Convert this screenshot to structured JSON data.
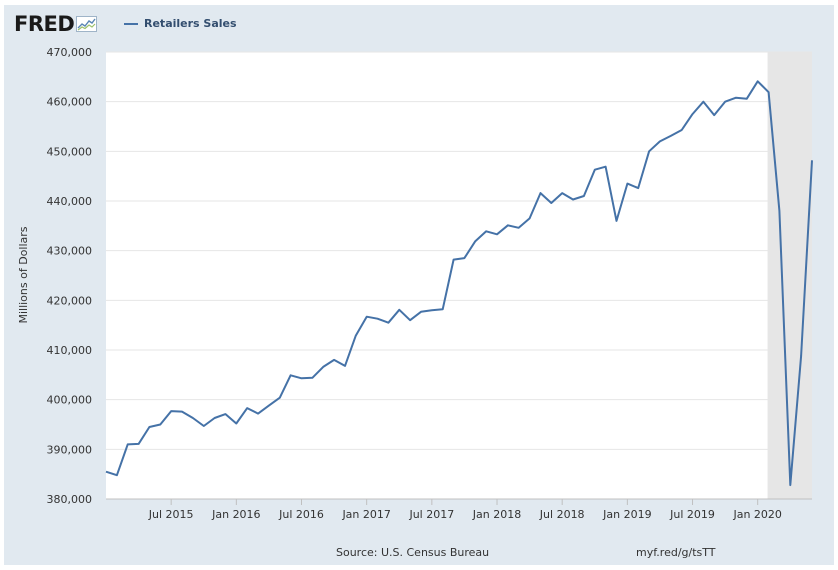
{
  "logo": {
    "text": "FRED",
    "icon": "fred-line-graph-icon"
  },
  "legend": {
    "label": "Retailers Sales",
    "color": "#4572a7"
  },
  "footer": {
    "source": "Source: U.S. Census Bureau",
    "link": "myf.red/g/tsTT"
  },
  "chart_data": {
    "type": "line",
    "title": "",
    "ylabel": "Millions of Dollars",
    "ylim": [
      380000,
      470000
    ],
    "ytick_values": [
      380000,
      390000,
      400000,
      410000,
      420000,
      430000,
      440000,
      450000,
      460000,
      470000
    ],
    "ytick_labels": [
      "380,000",
      "390,000",
      "400,000",
      "410,000",
      "420,000",
      "430,000",
      "440,000",
      "450,000",
      "460,000",
      "470,000"
    ],
    "xtick_labels": [
      "Jul 2015",
      "Jan 2016",
      "Jul 2016",
      "Jan 2017",
      "Jul 2017",
      "Jan 2018",
      "Jul 2018",
      "Jan 2019",
      "Jul 2019",
      "Jan 2020"
    ],
    "xtick_dates": [
      "2015-07",
      "2016-01",
      "2016-07",
      "2017-01",
      "2017-07",
      "2018-01",
      "2018-07",
      "2019-01",
      "2019-07",
      "2020-01"
    ],
    "x_range": [
      "2015-01",
      "2020-06"
    ],
    "grid": true,
    "legend_position": "top-left",
    "recession_shading": {
      "start": "2020-02",
      "end": "2020-06",
      "color": "#e6e6e6"
    },
    "series": [
      {
        "name": "Retailers Sales",
        "color": "#4572a7",
        "x": [
          "2015-01",
          "2015-02",
          "2015-03",
          "2015-04",
          "2015-05",
          "2015-06",
          "2015-07",
          "2015-08",
          "2015-09",
          "2015-10",
          "2015-11",
          "2015-12",
          "2016-01",
          "2016-02",
          "2016-03",
          "2016-04",
          "2016-05",
          "2016-06",
          "2016-07",
          "2016-08",
          "2016-09",
          "2016-10",
          "2016-11",
          "2016-12",
          "2017-01",
          "2017-02",
          "2017-03",
          "2017-04",
          "2017-05",
          "2017-06",
          "2017-07",
          "2017-08",
          "2017-09",
          "2017-10",
          "2017-11",
          "2017-12",
          "2018-01",
          "2018-02",
          "2018-03",
          "2018-04",
          "2018-05",
          "2018-06",
          "2018-07",
          "2018-08",
          "2018-09",
          "2018-10",
          "2018-11",
          "2018-12",
          "2019-01",
          "2019-02",
          "2019-03",
          "2019-04",
          "2019-05",
          "2019-06",
          "2019-07",
          "2019-08",
          "2019-09",
          "2019-10",
          "2019-11",
          "2019-12",
          "2020-01",
          "2020-02",
          "2020-03",
          "2020-04",
          "2020-05",
          "2020-06"
        ],
        "y": [
          385500,
          384800,
          391000,
          391100,
          394500,
          395000,
          397700,
          397600,
          396300,
          394700,
          396300,
          397100,
          395200,
          398300,
          397200,
          398800,
          400400,
          404900,
          404300,
          404400,
          406600,
          408000,
          406800,
          412900,
          416700,
          416300,
          415500,
          418100,
          416000,
          417700,
          418000,
          418200,
          428200,
          428500,
          431900,
          433900,
          433300,
          435100,
          434600,
          436500,
          441600,
          439600,
          441600,
          440300,
          441000,
          446300,
          446900,
          436000,
          443500,
          442600,
          450000,
          452000,
          453100,
          454300,
          457500,
          460000,
          457300,
          460000,
          460800,
          460600,
          464100,
          461900,
          438000,
          382800,
          408800,
          448200
        ]
      }
    ]
  }
}
